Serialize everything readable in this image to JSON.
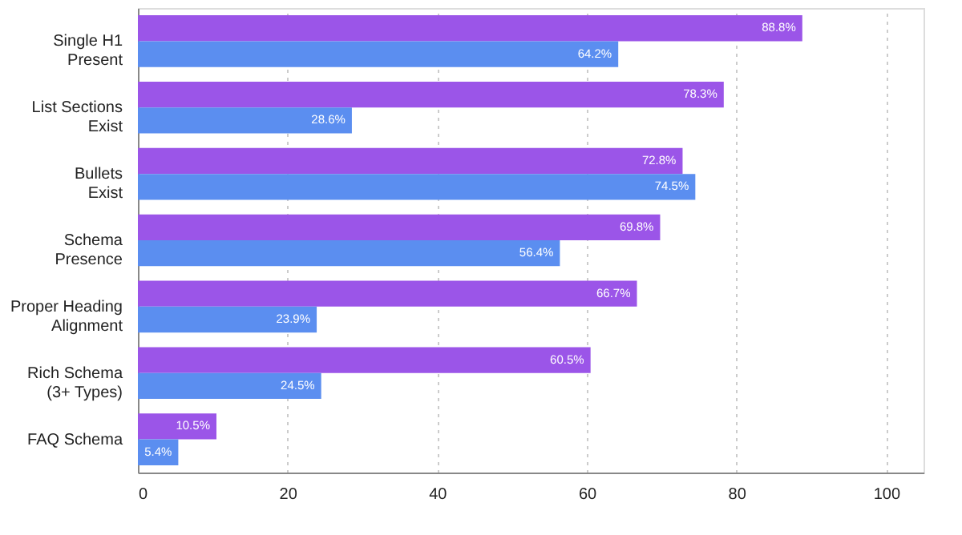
{
  "chart_data": {
    "type": "bar",
    "orientation": "horizontal",
    "categories": [
      "Single H1\nPresent",
      "List Sections\nExist",
      "Bullets\nExist",
      "Schema\nPresence",
      "Proper Heading\nAlignment",
      "Rich Schema\n(3+ Types)",
      "FAQ Schema"
    ],
    "series": [
      {
        "color": "#9b55e8",
        "values": [
          88.8,
          78.3,
          72.8,
          69.8,
          66.7,
          60.5,
          10.5
        ],
        "value_labels": [
          "88.8%",
          "78.3%",
          "72.8%",
          "69.8%",
          "66.7%",
          "60.5%",
          "10.5%"
        ]
      },
      {
        "color": "#5b8ef0",
        "values": [
          64.2,
          28.6,
          74.5,
          56.4,
          23.9,
          24.5,
          5.4
        ],
        "value_labels": [
          "64.2%",
          "28.6%",
          "74.5%",
          "56.4%",
          "23.9%",
          "24.5%",
          "5.4%"
        ]
      }
    ],
    "xlim": [
      0,
      105
    ],
    "xticks": [
      0,
      20,
      40,
      60,
      80,
      100
    ],
    "grid": "x",
    "legend": false
  }
}
